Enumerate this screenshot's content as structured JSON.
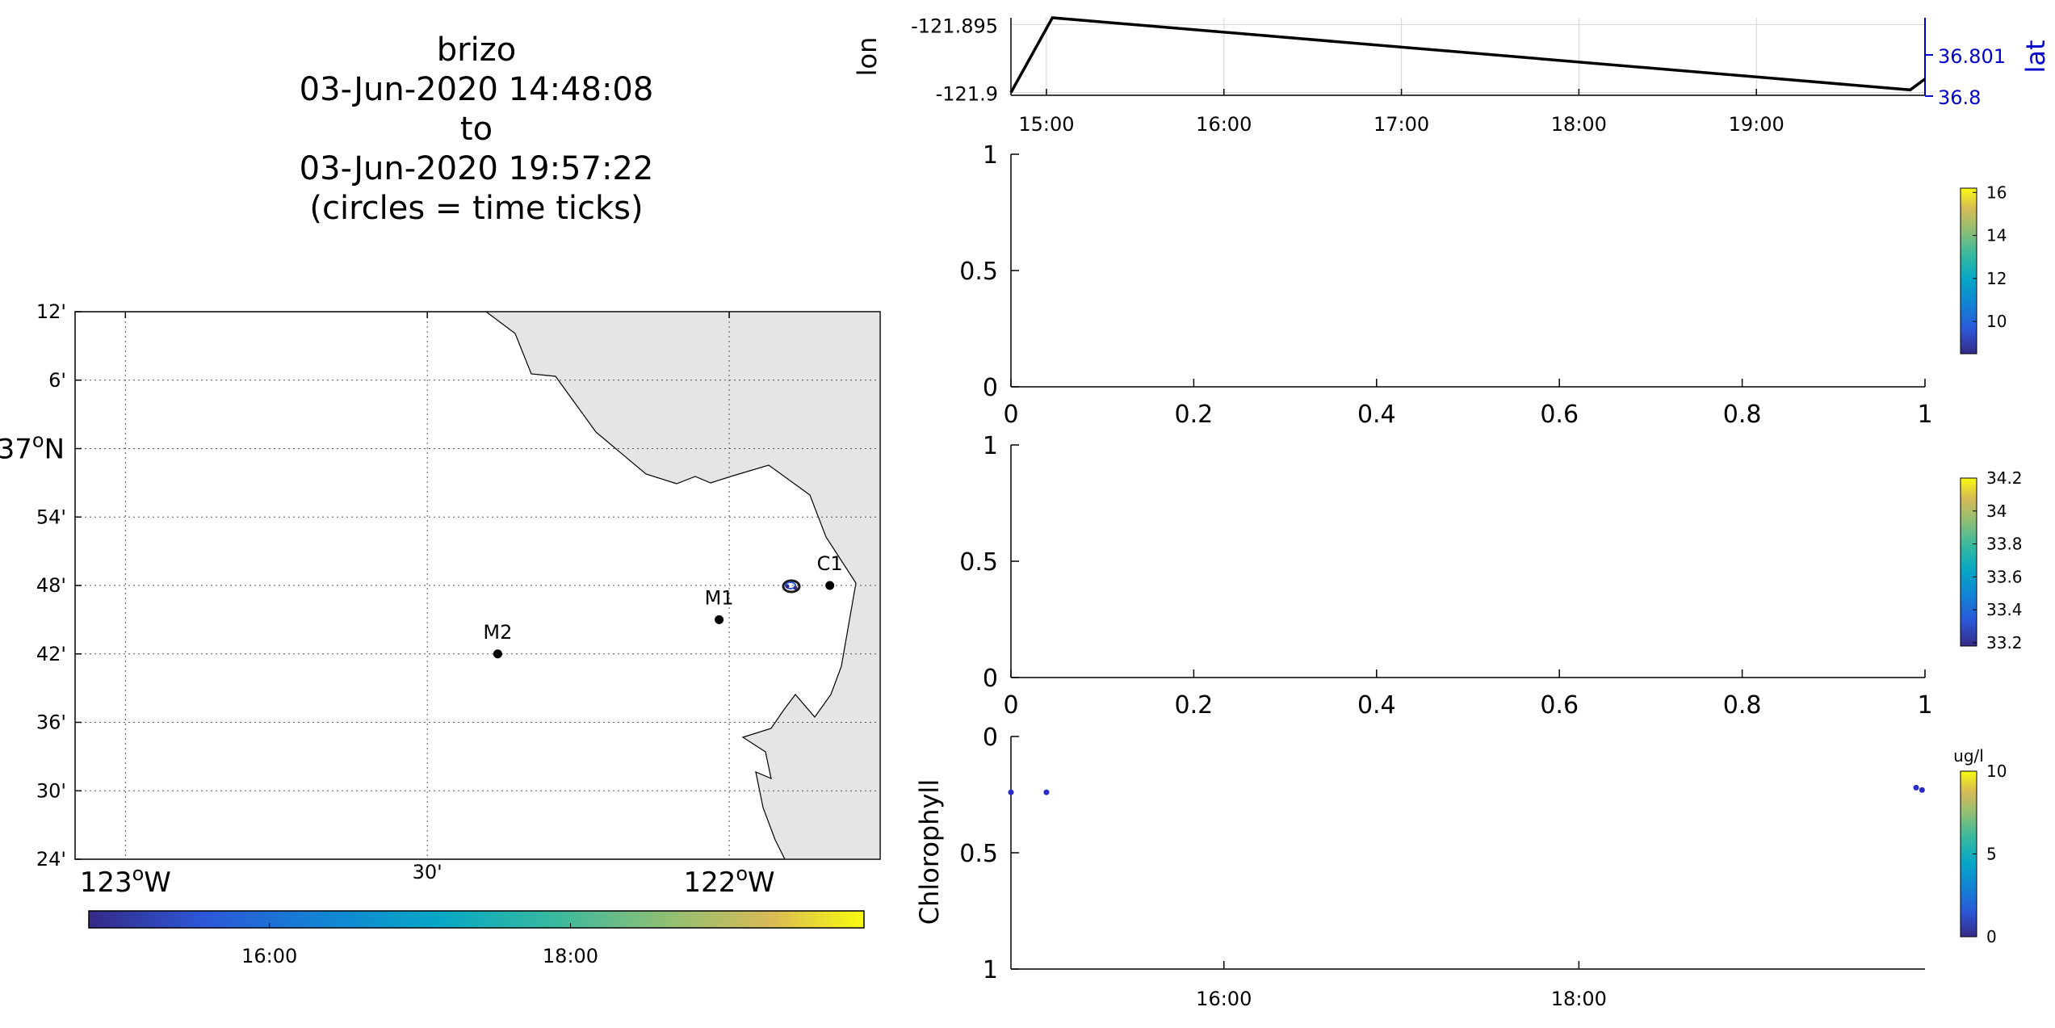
{
  "title": {
    "lines": [
      "brizo",
      "03-Jun-2020 14:48:08",
      "to",
      "03-Jun-2020 19:57:22",
      "(circles = time ticks)"
    ]
  },
  "colors": {
    "coast_fill": "#e5e5e5",
    "track": "#000000",
    "lat_axis": "#0000cc",
    "chlorophyll_points": "#2b2bcc",
    "station": "#000000"
  },
  "chart_data": [
    {
      "type": "line",
      "id": "position",
      "ylabel": "lon",
      "ylabel_right": "lat",
      "xlim": [
        "14:48",
        "19:57"
      ],
      "x_ticks": [
        "15:00",
        "16:00",
        "17:00",
        "18:00",
        "19:00"
      ],
      "y_ticks": [
        "-121.895",
        "-121.9"
      ],
      "y_ticks_right": [
        "36.801",
        "36.8"
      ],
      "ylim": [
        -121.9,
        -121.895
      ],
      "grid": true,
      "series": [
        {
          "x": [
            "14:48",
            "15:02",
            "19:52",
            "19:57"
          ],
          "values": [
            -121.9,
            -121.8945,
            -121.8998,
            -121.899
          ]
        }
      ]
    },
    {
      "type": "scatter",
      "id": "empty-1",
      "xlim": [
        0,
        1
      ],
      "ylim": [
        0,
        1
      ],
      "x_ticks": [
        "0",
        "0.2",
        "0.4",
        "0.6",
        "0.8",
        "1"
      ],
      "y_ticks": [
        "0",
        "0.5",
        "1"
      ],
      "colorbar": {
        "ticks": [
          "10",
          "12",
          "14",
          "16"
        ],
        "range": [
          8.5,
          16.2
        ]
      }
    },
    {
      "type": "scatter",
      "id": "empty-2",
      "xlim": [
        0,
        1
      ],
      "ylim": [
        0,
        1
      ],
      "x_ticks": [
        "0",
        "0.2",
        "0.4",
        "0.6",
        "0.8",
        "1"
      ],
      "y_ticks": [
        "0",
        "0.5",
        "1"
      ],
      "colorbar": {
        "ticks": [
          "33.2",
          "33.4",
          "33.6",
          "33.8",
          "34",
          "34.2"
        ],
        "range": [
          33.18,
          34.2
        ]
      }
    },
    {
      "type": "scatter",
      "id": "chlorophyll",
      "ylabel": "Chlorophyll",
      "xlim": [
        "14:48",
        "19:57"
      ],
      "ylim": [
        0,
        1
      ],
      "y_reversed": true,
      "x_ticks": [
        "16:00",
        "18:00"
      ],
      "y_ticks": [
        "0",
        "0.5",
        "1"
      ],
      "points": [
        {
          "x": "14:48",
          "y": 0.24
        },
        {
          "x": "15:00",
          "y": 0.24
        },
        {
          "x": "19:54",
          "y": 0.22
        },
        {
          "x": "19:56",
          "y": 0.23
        }
      ],
      "colorbar": {
        "unit": "ug/l",
        "ticks": [
          "0",
          "5",
          "10"
        ],
        "range": [
          0,
          10
        ]
      }
    },
    {
      "type": "map",
      "id": "track-map",
      "lat_ticks": [
        "12'",
        "6'",
        "37°N",
        "54'",
        "48'",
        "42'",
        "36'",
        "30'",
        "24'"
      ],
      "lon_ticks": [
        "123°W",
        "30'",
        "122°W"
      ],
      "lat_range": [
        "36°24'N",
        "37°12'N"
      ],
      "lon_range": [
        "123°05'W",
        "121°45'W"
      ],
      "stations": [
        {
          "name": "M2",
          "lat": "36°42'N",
          "lon": "122°23'W"
        },
        {
          "name": "M1",
          "lat": "36°45'N",
          "lon": "122°01'W"
        },
        {
          "name": "C1",
          "lat": "36°48'N",
          "lon": "121°50'W"
        }
      ],
      "time_colorbar": {
        "ticks": [
          "16:00",
          "18:00"
        ],
        "range": [
          "14:48",
          "19:57"
        ]
      }
    }
  ]
}
